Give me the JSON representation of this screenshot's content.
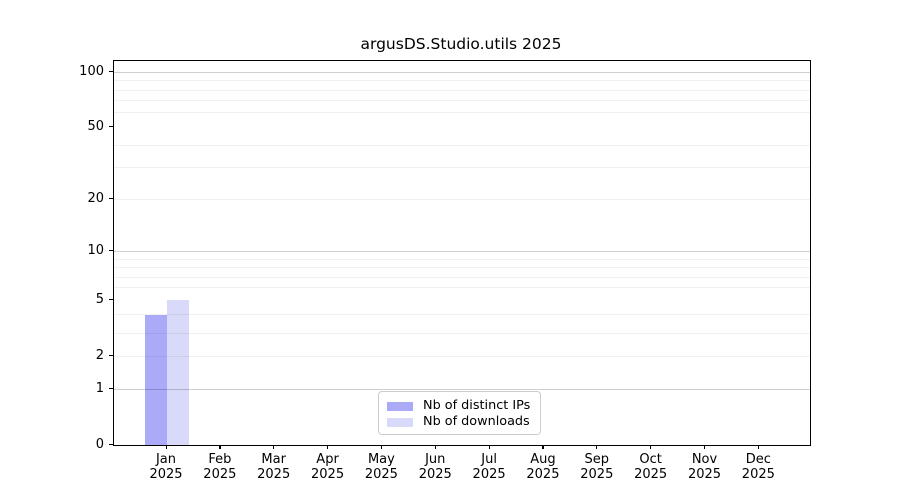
{
  "chart_data": {
    "type": "bar",
    "title": "argusDS.Studio.utils 2025",
    "x_tick_months": [
      "Jan",
      "Feb",
      "Mar",
      "Apr",
      "May",
      "Jun",
      "Jul",
      "Aug",
      "Sep",
      "Oct",
      "Nov",
      "Dec"
    ],
    "x_tick_year": "2025",
    "y_scale": "log10(1+y)",
    "y_tick_values": [
      0,
      1,
      2,
      5,
      10,
      20,
      50,
      100
    ],
    "y_major_gridlines": [
      1,
      10,
      100
    ],
    "y_minor_gridlines": [
      2,
      3,
      4,
      6,
      7,
      8,
      9,
      20,
      30,
      40,
      60,
      70,
      80,
      90
    ],
    "ylim": [
      0,
      115
    ],
    "grid": "on",
    "series": [
      {
        "name": "Nb of distinct IPs",
        "color": "#aaaaf8",
        "values": [
          4,
          0,
          0,
          0,
          0,
          0,
          0,
          0,
          0,
          0,
          0,
          0
        ]
      },
      {
        "name": "Nb of downloads",
        "color": "#d9d9fa",
        "values": [
          5,
          0,
          0,
          0,
          0,
          0,
          0,
          0,
          0,
          0,
          0,
          0
        ]
      }
    ],
    "legend_position": "bottom-center"
  }
}
